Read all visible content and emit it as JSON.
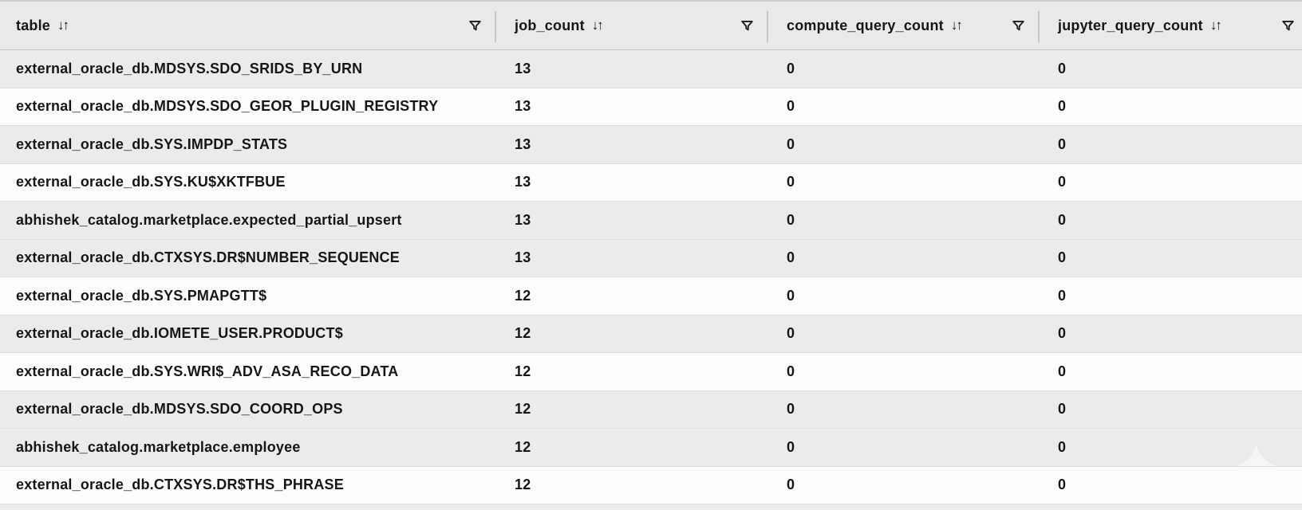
{
  "icons": {
    "sort_glyph": "↓↑",
    "sort_icon_name": "sort-asc-desc-icon",
    "filter_icon_name": "filter-funnel-icon",
    "watermark_name": "star-spire-watermark"
  },
  "colors": {
    "header_bg": "#e9e9e9",
    "row_shaded": "#ebebeb",
    "row_plain": "#fcfcfc",
    "text": "#161616",
    "separator": "#dedede",
    "header_border": "#c3c3c3",
    "column_divider": "#c7c7c7",
    "top_edge": "#cdcdcd",
    "icon": "#1a1a1a",
    "watermark": "#f6f6f6"
  },
  "table": {
    "columns": [
      {
        "key": "name",
        "label": "table",
        "sortable": true,
        "filterable": true
      },
      {
        "key": "job_count",
        "label": "job_count",
        "sortable": true,
        "filterable": true
      },
      {
        "key": "compute_query_count",
        "label": "compute_query_count",
        "sortable": true,
        "filterable": true
      },
      {
        "key": "jupyter_query_count",
        "label": "jupyter_query_count",
        "sortable": true,
        "filterable": true
      }
    ],
    "rows": [
      {
        "name": "external_oracle_db.MDSYS.SDO_SRIDS_BY_URN",
        "job_count": "13",
        "compute_query_count": "0",
        "jupyter_query_count": "0",
        "shaded": true
      },
      {
        "name": "external_oracle_db.MDSYS.SDO_GEOR_PLUGIN_REGISTRY",
        "job_count": "13",
        "compute_query_count": "0",
        "jupyter_query_count": "0",
        "shaded": false
      },
      {
        "name": "external_oracle_db.SYS.IMPDP_STATS",
        "job_count": "13",
        "compute_query_count": "0",
        "jupyter_query_count": "0",
        "shaded": true
      },
      {
        "name": "external_oracle_db.SYS.KU$XKTFBUE",
        "job_count": "13",
        "compute_query_count": "0",
        "jupyter_query_count": "0",
        "shaded": false
      },
      {
        "name": "abhishek_catalog.marketplace.expected_partial_upsert",
        "job_count": "13",
        "compute_query_count": "0",
        "jupyter_query_count": "0",
        "shaded": true
      },
      {
        "name": "external_oracle_db.CTXSYS.DR$NUMBER_SEQUENCE",
        "job_count": "13",
        "compute_query_count": "0",
        "jupyter_query_count": "0",
        "shaded": true
      },
      {
        "name": "external_oracle_db.SYS.PMAPGTT$",
        "job_count": "12",
        "compute_query_count": "0",
        "jupyter_query_count": "0",
        "shaded": false
      },
      {
        "name": "external_oracle_db.IOMETE_USER.PRODUCT$",
        "job_count": "12",
        "compute_query_count": "0",
        "jupyter_query_count": "0",
        "shaded": true
      },
      {
        "name": "external_oracle_db.SYS.WRI$_ADV_ASA_RECO_DATA",
        "job_count": "12",
        "compute_query_count": "0",
        "jupyter_query_count": "0",
        "shaded": false
      },
      {
        "name": "external_oracle_db.MDSYS.SDO_COORD_OPS",
        "job_count": "12",
        "compute_query_count": "0",
        "jupyter_query_count": "0",
        "shaded": true
      },
      {
        "name": "abhishek_catalog.marketplace.employee",
        "job_count": "12",
        "compute_query_count": "0",
        "jupyter_query_count": "0",
        "shaded": true
      },
      {
        "name": "external_oracle_db.CTXSYS.DR$THS_PHRASE",
        "job_count": "12",
        "compute_query_count": "0",
        "jupyter_query_count": "0",
        "shaded": false
      }
    ]
  }
}
